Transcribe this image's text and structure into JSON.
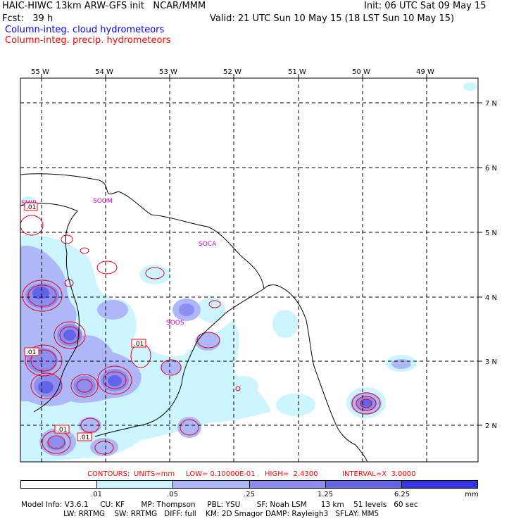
{
  "header": {
    "line1_left": "HAIC-HIWC 13km ARW-GFS init   NCAR/MMM",
    "line1_right": "Init: 06 UTC Sat 09 May 15",
    "line2_left": "Fcst:   39 h",
    "line2_right": "Valid: 21 UTC Sun 10 May 15 (18 LST Sun 10 May 15)",
    "legend_cloud": "Column-integ. cloud hydrometeors",
    "legend_precip": "Column-integ. precip. hydrometeors"
  },
  "map": {
    "lon_labels": [
      "55 W",
      "54 W",
      "53 W",
      "52 W",
      "51 W",
      "50 W",
      "49 W"
    ],
    "lat_labels": [
      "7 N",
      "6 N",
      "5 N",
      "4 N",
      "3 N",
      "2 N"
    ],
    "stations": [
      "SOOM",
      "SOCA",
      "SOOS",
      "SMJP"
    ],
    "contour_labels": [
      ".01",
      ".01",
      ".01",
      ".01",
      ".01"
    ]
  },
  "contours_line": {
    "contours": "CONTOURS:",
    "units": "UNITS=mm",
    "low": "LOW= 0.10000E-01",
    "high": "HIGH=  2.4300",
    "interval": "INTERVAL=X  3.0000"
  },
  "colorbar": {
    "colors": [
      "#ffffff",
      "#ccf5ff",
      "#aeb8f8",
      "#8e8ef0",
      "#6464ea",
      "#3232e6",
      "#0000ee"
    ],
    "labels": [
      ".01",
      ".05",
      ".25",
      "1.25",
      "6.25",
      "mm"
    ]
  },
  "model_info": {
    "line1": "Model Info: V3.6.1     CU: KF       MP: Thompson     PBL: YSU       SF: Noah LSM      13 km    51 levels   60 sec",
    "line2": "                  LW: RRTMG    SW: RRTMG   DIFF: full    KM: 2D Smagor DAMP: Rayleigh3   SFLAY: MM5"
  }
}
